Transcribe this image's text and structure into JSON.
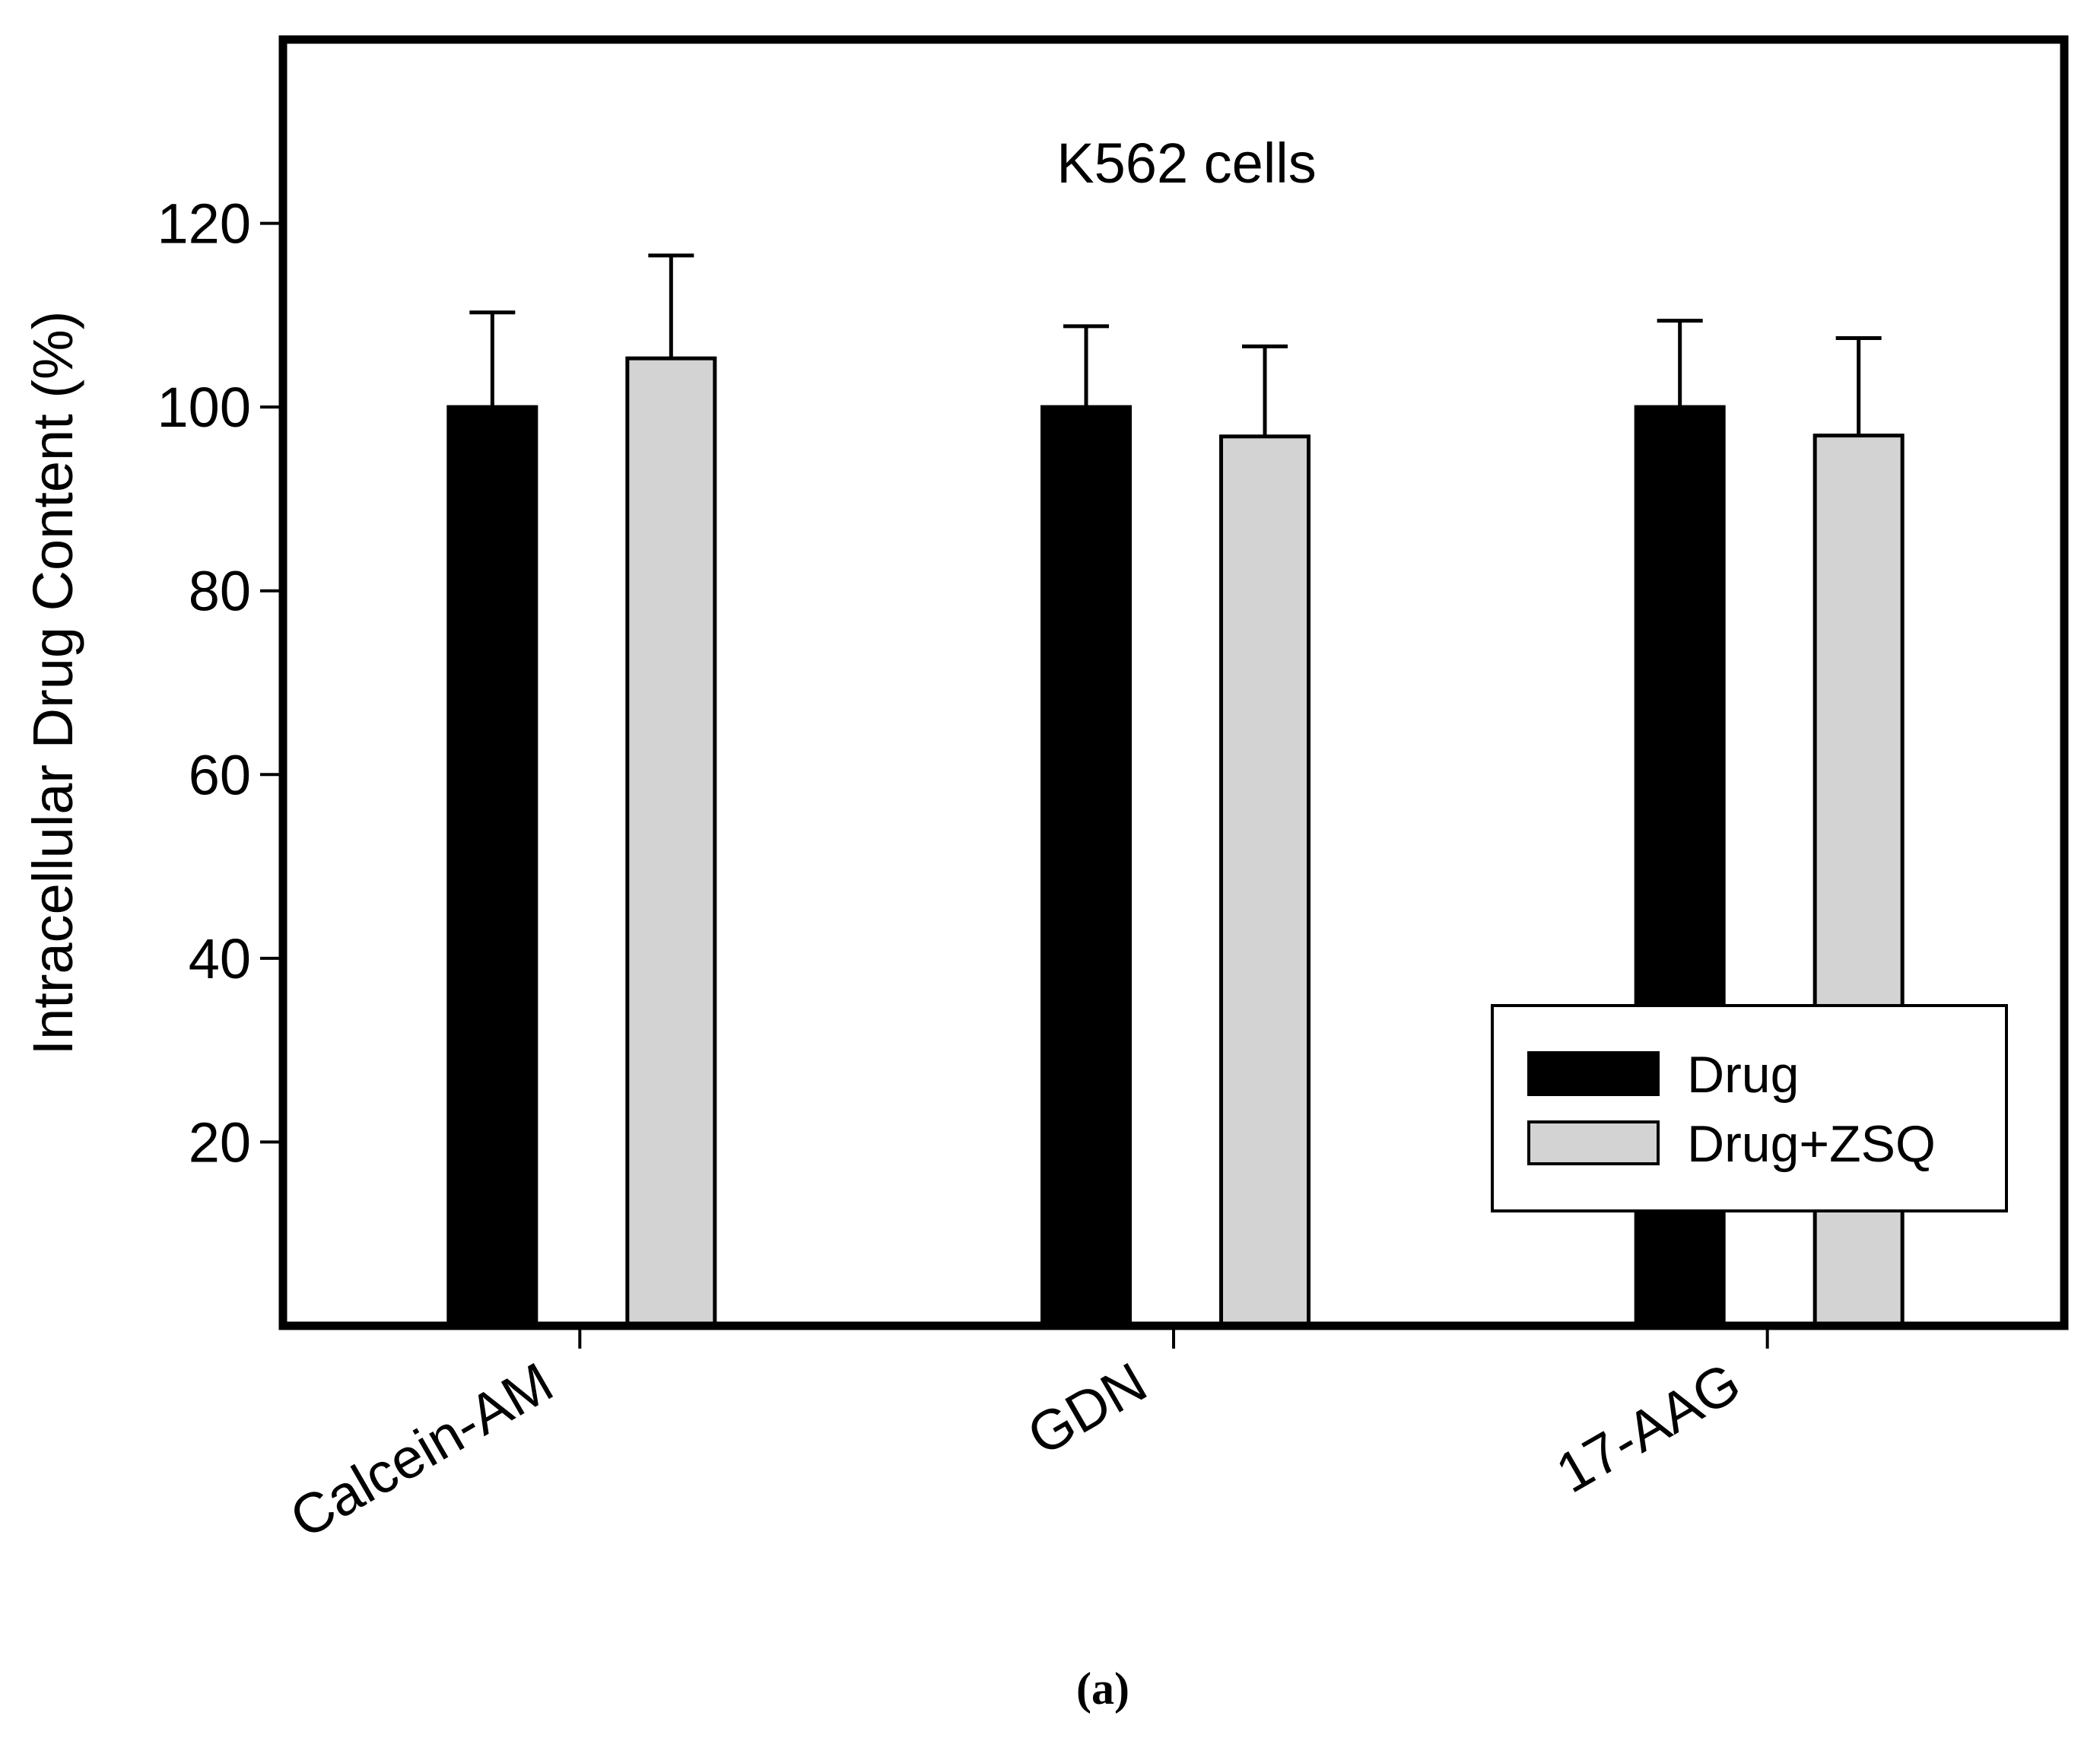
{
  "chart_data": {
    "type": "bar",
    "title": "K562 cells",
    "xlabel": "",
    "ylabel": "Intracellular Drug Content (%)",
    "ylim": [
      0,
      140
    ],
    "yticks": [
      20,
      40,
      60,
      80,
      100,
      120
    ],
    "categories": [
      "Calcein-AM",
      "GDN",
      "17-AAG"
    ],
    "series": [
      {
        "name": "Drug",
        "color": "#000000",
        "values": [
          100,
          100,
          100
        ],
        "errors": [
          10.3,
          8.8,
          9.4
        ]
      },
      {
        "name": "Drug+ZSQ",
        "color": "#d3d3d3",
        "values": [
          105.3,
          96.8,
          96.9
        ],
        "errors": [
          11.2,
          9.8,
          10.6
        ]
      }
    ],
    "legend": "bottom-right",
    "grid": false,
    "panel_label": "(a)"
  }
}
